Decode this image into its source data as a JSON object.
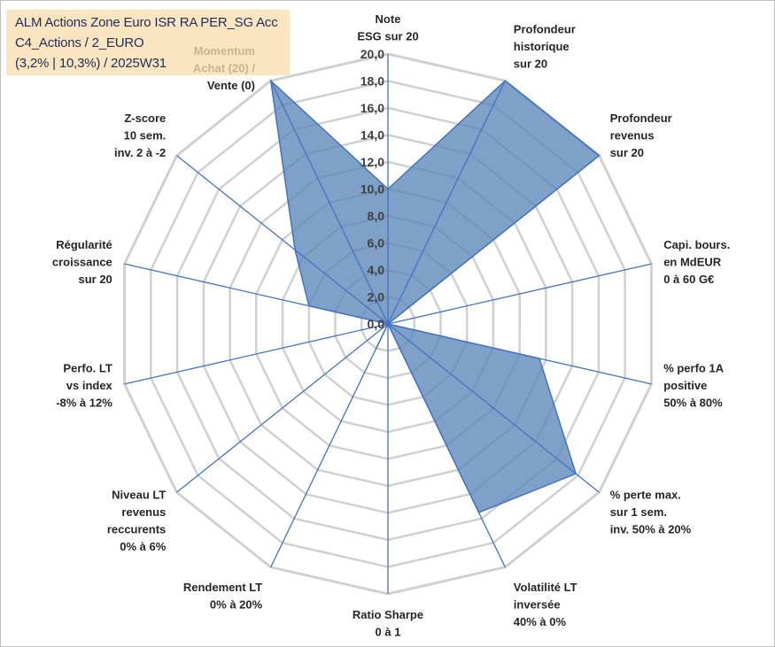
{
  "title": {
    "line1": "ALM Actions Zone Euro ISR RA PER_SG Acc",
    "line2": "C4_Actions / 2_EURO",
    "line3": "(3,2% | 10,3%) / 2025W31"
  },
  "colors": {
    "fill": "#5b86b8",
    "line": "#4472c4",
    "grid": "#d0d0d0",
    "title_bg": "#fbe5c1"
  },
  "chart_data": {
    "type": "radar",
    "rmin": 0,
    "rmax": 20,
    "tick_step": 2,
    "tick_labels": [
      "0,0",
      "2,0",
      "4,0",
      "6,0",
      "8,0",
      "10,0",
      "12,0",
      "14,0",
      "16,0",
      "18,0",
      "20,0"
    ],
    "axes": [
      {
        "label": [
          "Note",
          "ESG sur 20"
        ],
        "value": 10.0
      },
      {
        "label": [
          "Profondeur",
          "historique",
          "sur 20"
        ],
        "value": 20.0
      },
      {
        "label": [
          "Profondeur",
          "revenus",
          "sur 20"
        ],
        "value": 20.0
      },
      {
        "label": [
          "Capi. bours.",
          "en MdEUR",
          "0 à 60 G€"
        ],
        "value": 0.0
      },
      {
        "label": [
          "% perfo 1A",
          "positive",
          "50% à 80%"
        ],
        "value": 11.5
      },
      {
        "label": [
          "% perte max.",
          "sur 1 sem.",
          "inv. 50% à 20%"
        ],
        "value": 17.8
      },
      {
        "label": [
          "Volatilité LT",
          "inversée",
          "40% à 0%"
        ],
        "value": 15.5
      },
      {
        "label": [
          "Ratio Sharpe",
          "0 à 1"
        ],
        "value": 0.0
      },
      {
        "label": [
          "Rendement LT",
          "0% à 20%"
        ],
        "value": 2.0
      },
      {
        "label": [
          "Niveau LT",
          "revenus",
          "reccurents",
          "0% à 6%"
        ],
        "value": 0.0
      },
      {
        "label": [
          "Perfo. LT",
          "vs index",
          "-8% à 12%"
        ],
        "value": 0.0
      },
      {
        "label": [
          "Régularité",
          "croissance",
          "sur 20"
        ],
        "value": 6.0
      },
      {
        "label": [
          "Z-score",
          "10 sem.",
          "inv. 2 à -2"
        ],
        "value": 8.8
      },
      {
        "label": [
          "Momentum",
          "Achat (20) /",
          "Vente (0)"
        ],
        "value": 20.0
      }
    ]
  }
}
